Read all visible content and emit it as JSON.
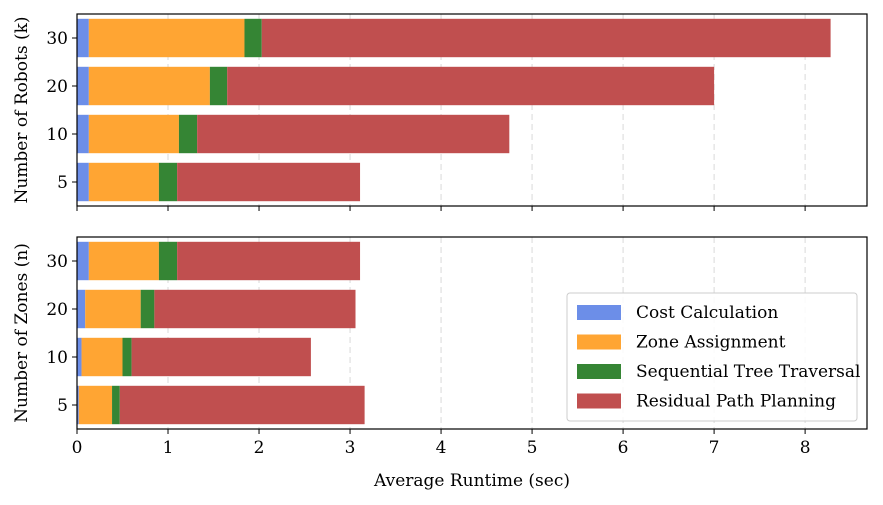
{
  "chart_data": [
    {
      "type": "bar",
      "orientation": "horizontal-stacked",
      "ylabel": "Number of Robots (k)",
      "categories": [
        "5",
        "10",
        "20",
        "30"
      ],
      "series": [
        {
          "name": "Cost Calculation",
          "color": "#6c8ee8",
          "values": [
            0.13,
            0.13,
            0.13,
            0.13
          ]
        },
        {
          "name": "Zone Assignment",
          "color": "#ffa533",
          "values": [
            0.77,
            0.99,
            1.33,
            1.71
          ]
        },
        {
          "name": "Sequential Tree Traversal",
          "color": "#358534",
          "values": [
            0.2,
            0.2,
            0.19,
            0.19
          ]
        },
        {
          "name": "Residual Path Planning",
          "color": "#c04f4f",
          "values": [
            2.01,
            3.43,
            5.35,
            6.25
          ]
        }
      ],
      "xlim": [
        0,
        8.68
      ]
    },
    {
      "type": "bar",
      "orientation": "horizontal-stacked",
      "ylabel": "Number of Zones (n)",
      "xlabel": "Average Runtime (sec)",
      "categories": [
        "5",
        "10",
        "20",
        "30"
      ],
      "series": [
        {
          "name": "Cost Calculation",
          "color": "#6c8ee8",
          "values": [
            0.02,
            0.05,
            0.09,
            0.13
          ]
        },
        {
          "name": "Zone Assignment",
          "color": "#ffa533",
          "values": [
            0.365,
            0.45,
            0.61,
            0.77
          ]
        },
        {
          "name": "Sequential Tree Traversal",
          "color": "#358534",
          "values": [
            0.085,
            0.1,
            0.15,
            0.2
          ]
        },
        {
          "name": "Residual Path Planning",
          "color": "#c04f4f",
          "values": [
            2.69,
            1.97,
            2.21,
            2.01
          ]
        }
      ],
      "xlim": [
        0,
        8.68
      ],
      "xticks": [
        "0",
        "1",
        "2",
        "3",
        "4",
        "5",
        "6",
        "7",
        "8"
      ],
      "grid": "x-dashed",
      "legend": "bottom-right",
      "legend_entries": [
        "Cost Calculation",
        "Zone Assignment",
        "Sequential Tree Traversal",
        "Residual Path Planning"
      ]
    }
  ]
}
